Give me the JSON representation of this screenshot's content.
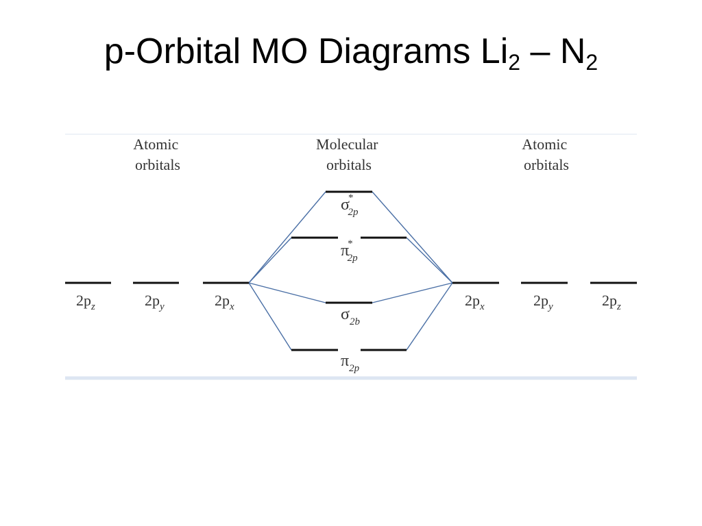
{
  "slide": {
    "title_main": "p-Orbital MO Diagrams Li",
    "title_sub1": "2",
    "title_dash": " – N",
    "title_sub2": "2"
  },
  "diagram": {
    "left_header": [
      "Atomic",
      "orbitals"
    ],
    "center_header": [
      "Molecular",
      "orbitals"
    ],
    "right_header": [
      "Atomic",
      "orbitals"
    ],
    "left_atomic_orbitals": [
      {
        "main": "2p",
        "sub": "z"
      },
      {
        "main": "2p",
        "sub": "y"
      },
      {
        "main": "2p",
        "sub": "x"
      }
    ],
    "right_atomic_orbitals": [
      {
        "main": "2p",
        "sub": "x"
      },
      {
        "main": "2p",
        "sub": "y"
      },
      {
        "main": "2p",
        "sub": "z"
      }
    ],
    "molecular_orbitals": {
      "sigma_star": {
        "symbol": "σ",
        "star": "*",
        "sub": "2p"
      },
      "pi_star": {
        "symbol": "π",
        "star": "*",
        "sub": "2p"
      },
      "sigma": {
        "symbol": "σ",
        "sub": "2b"
      },
      "pi": {
        "symbol": "π",
        "sub": "2p"
      }
    },
    "colors": {
      "level": "#111111",
      "connector": "#4a6fa5",
      "text": "#333333",
      "border": "#dde6f2"
    }
  }
}
